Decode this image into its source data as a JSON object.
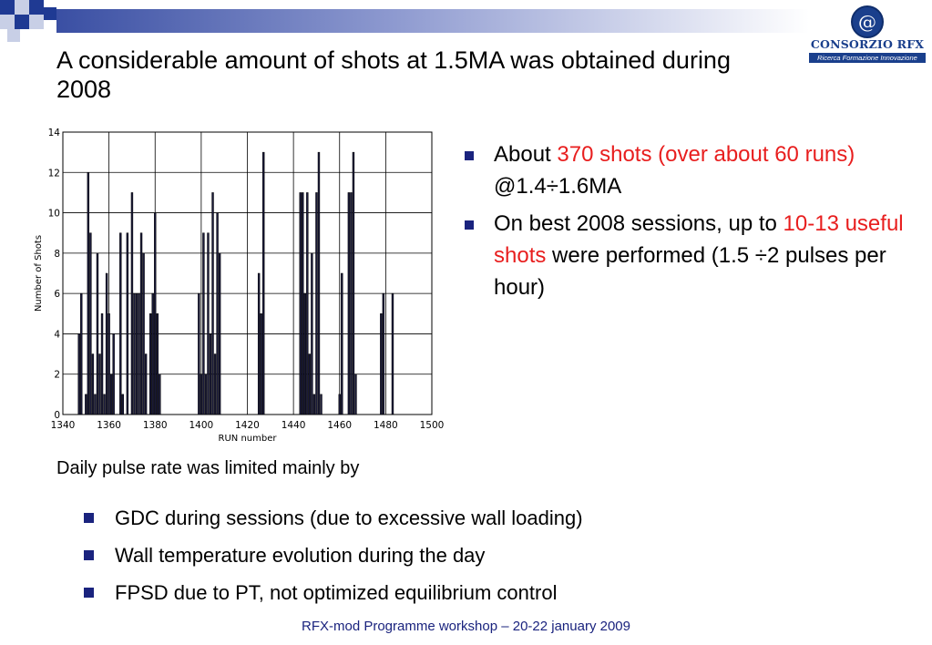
{
  "title": "A considerable amount of shots at 1.5MA was obtained during 2008",
  "logo": {
    "name": "CONSORZIO RFX",
    "tagline": "Ricerca Formazione Innovazione",
    "colors": {
      "brand": "#1a3f8c"
    }
  },
  "bullets_right": [
    {
      "parts": [
        {
          "text": "About ",
          "red": false
        },
        {
          "text": "370 shots (over about 60 runs)",
          "red": true
        },
        {
          "text": " @1.4÷1.6MA",
          "red": false
        }
      ]
    },
    {
      "parts": [
        {
          "text": "On best 2008 sessions, up to ",
          "red": false
        },
        {
          "text": "10-13 useful shots",
          "red": true
        },
        {
          "text": " were performed (1.5 ÷2 pulses per hour)",
          "red": false
        }
      ]
    }
  ],
  "daily_label": "Daily pulse rate was limited mainly by",
  "bullets_bottom": [
    "GDC during sessions (due to excessive wall loading)",
    "Wall temperature evolution during the day",
    "FPSD due to PT, not optimized equilibrium control"
  ],
  "footer": "RFX-mod Programme workshop – 20-22 january 2009",
  "chart_data": {
    "type": "bar",
    "xlabel": "RUN number",
    "ylabel": "Number of Shots",
    "xlim": [
      1340,
      1500
    ],
    "ylim": [
      0,
      14
    ],
    "xticks": [
      1340,
      1360,
      1380,
      1400,
      1420,
      1440,
      1460,
      1480,
      1500
    ],
    "yticks": [
      0,
      2,
      4,
      6,
      8,
      10,
      12,
      14
    ],
    "grid": true,
    "bar_color": "#1a1a3a",
    "x": [
      1347,
      1348,
      1350,
      1351,
      1352,
      1353,
      1354,
      1355,
      1356,
      1357,
      1358,
      1359,
      1360,
      1361,
      1362,
      1365,
      1366,
      1368,
      1370,
      1371,
      1372,
      1373,
      1374,
      1375,
      1376,
      1378,
      1379,
      1380,
      1381,
      1382,
      1399,
      1400,
      1401,
      1402,
      1403,
      1404,
      1405,
      1406,
      1407,
      1408,
      1425,
      1426,
      1427,
      1443,
      1444,
      1445,
      1446,
      1447,
      1448,
      1449,
      1450,
      1451,
      1452,
      1460,
      1461,
      1464,
      1465,
      1466,
      1467,
      1478,
      1479,
      1483
    ],
    "values": [
      4,
      6,
      1,
      12,
      9,
      3,
      1,
      8,
      3,
      5,
      1,
      7,
      5,
      2,
      4,
      9,
      1,
      9,
      11,
      6,
      6,
      6,
      9,
      8,
      3,
      5,
      6,
      10,
      5,
      2,
      6,
      2,
      9,
      2,
      9,
      4,
      11,
      3,
      10,
      8,
      7,
      5,
      13,
      11,
      11,
      6,
      11,
      3,
      8,
      1,
      11,
      13,
      1,
      1,
      7,
      11,
      11,
      13,
      2,
      5,
      6,
      6
    ]
  }
}
